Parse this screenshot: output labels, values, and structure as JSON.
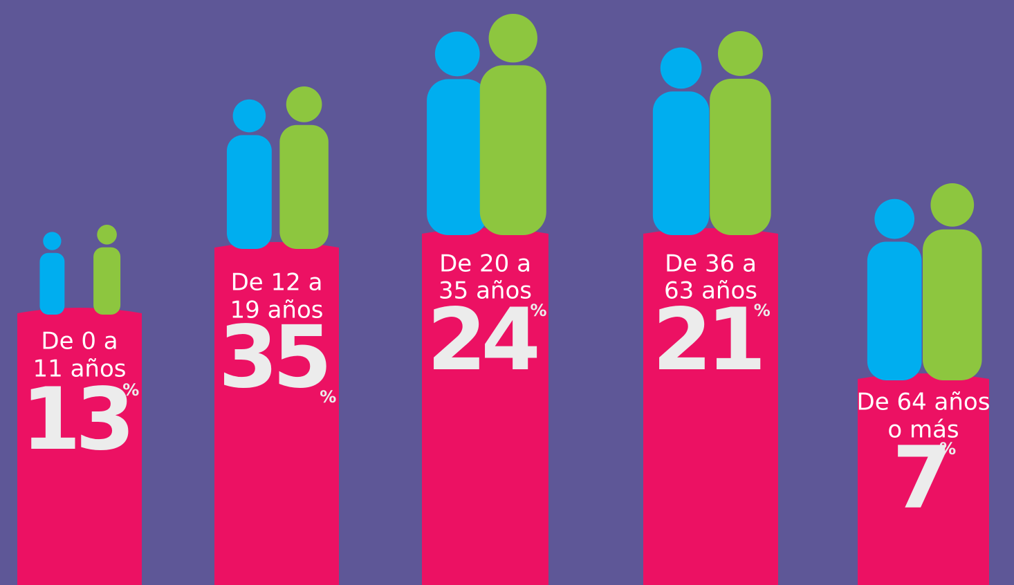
{
  "items": [
    {
      "label": [
        "De 0 a",
        "11 años"
      ],
      "value": 13,
      "unit": "%"
    },
    {
      "label": [
        "De 12 a",
        "19 años"
      ],
      "value": 35,
      "unit": "%"
    },
    {
      "label": [
        "De 20 a",
        "35 años"
      ],
      "value": 24,
      "unit": "%"
    },
    {
      "label": [
        "De 36 a",
        "63 años"
      ],
      "value": 21,
      "unit": "%"
    },
    {
      "label": [
        "De 64 años",
        "o más"
      ],
      "value": 7,
      "unit": "%"
    }
  ]
}
